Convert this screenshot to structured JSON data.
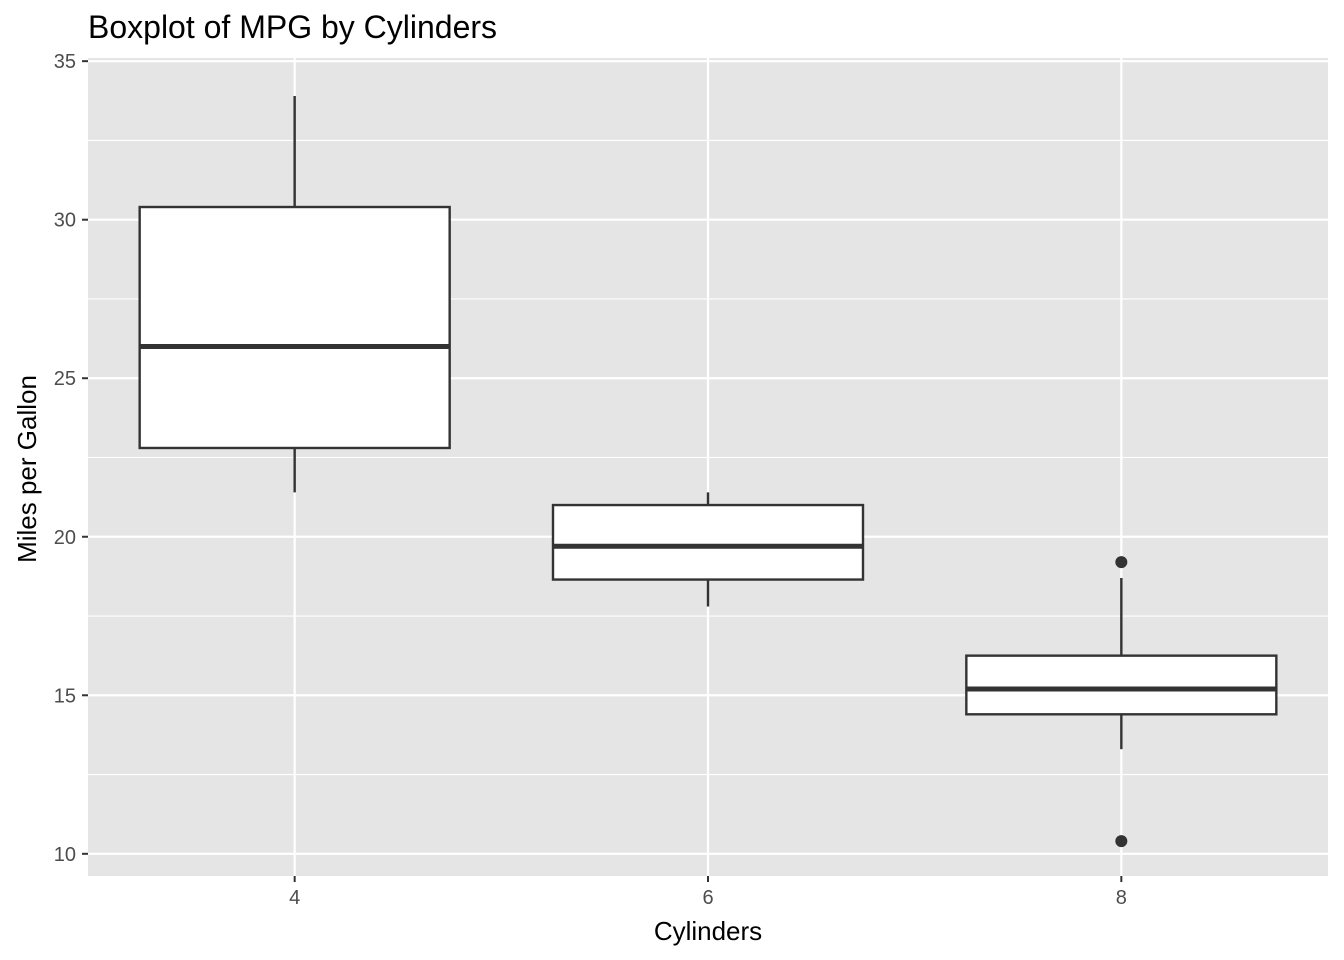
{
  "chart_data": {
    "type": "boxplot",
    "title": "Boxplot of MPG by Cylinders",
    "xlabel": "Cylinders",
    "ylabel": "Miles per Gallon",
    "categories": [
      "4",
      "6",
      "8"
    ],
    "ylim": [
      9.3,
      35.1
    ],
    "yticks": [
      10,
      15,
      20,
      25,
      30,
      35
    ],
    "grid": true,
    "boxes": [
      {
        "category": "4",
        "lower_whisker": 21.4,
        "q1": 22.8,
        "median": 26.0,
        "q3": 30.4,
        "upper_whisker": 33.9,
        "outliers": []
      },
      {
        "category": "6",
        "lower_whisker": 17.8,
        "q1": 18.65,
        "median": 19.7,
        "q3": 21.0,
        "upper_whisker": 21.4,
        "outliers": []
      },
      {
        "category": "8",
        "lower_whisker": 13.3,
        "q1": 14.4,
        "median": 15.2,
        "q3": 16.25,
        "upper_whisker": 18.7,
        "outliers": [
          10.4,
          19.2
        ]
      }
    ],
    "colors": {
      "panel_bg": "#e5e5e5",
      "grid": "#ffffff",
      "box_fill": "#ffffff",
      "box_stroke": "#333333"
    }
  }
}
